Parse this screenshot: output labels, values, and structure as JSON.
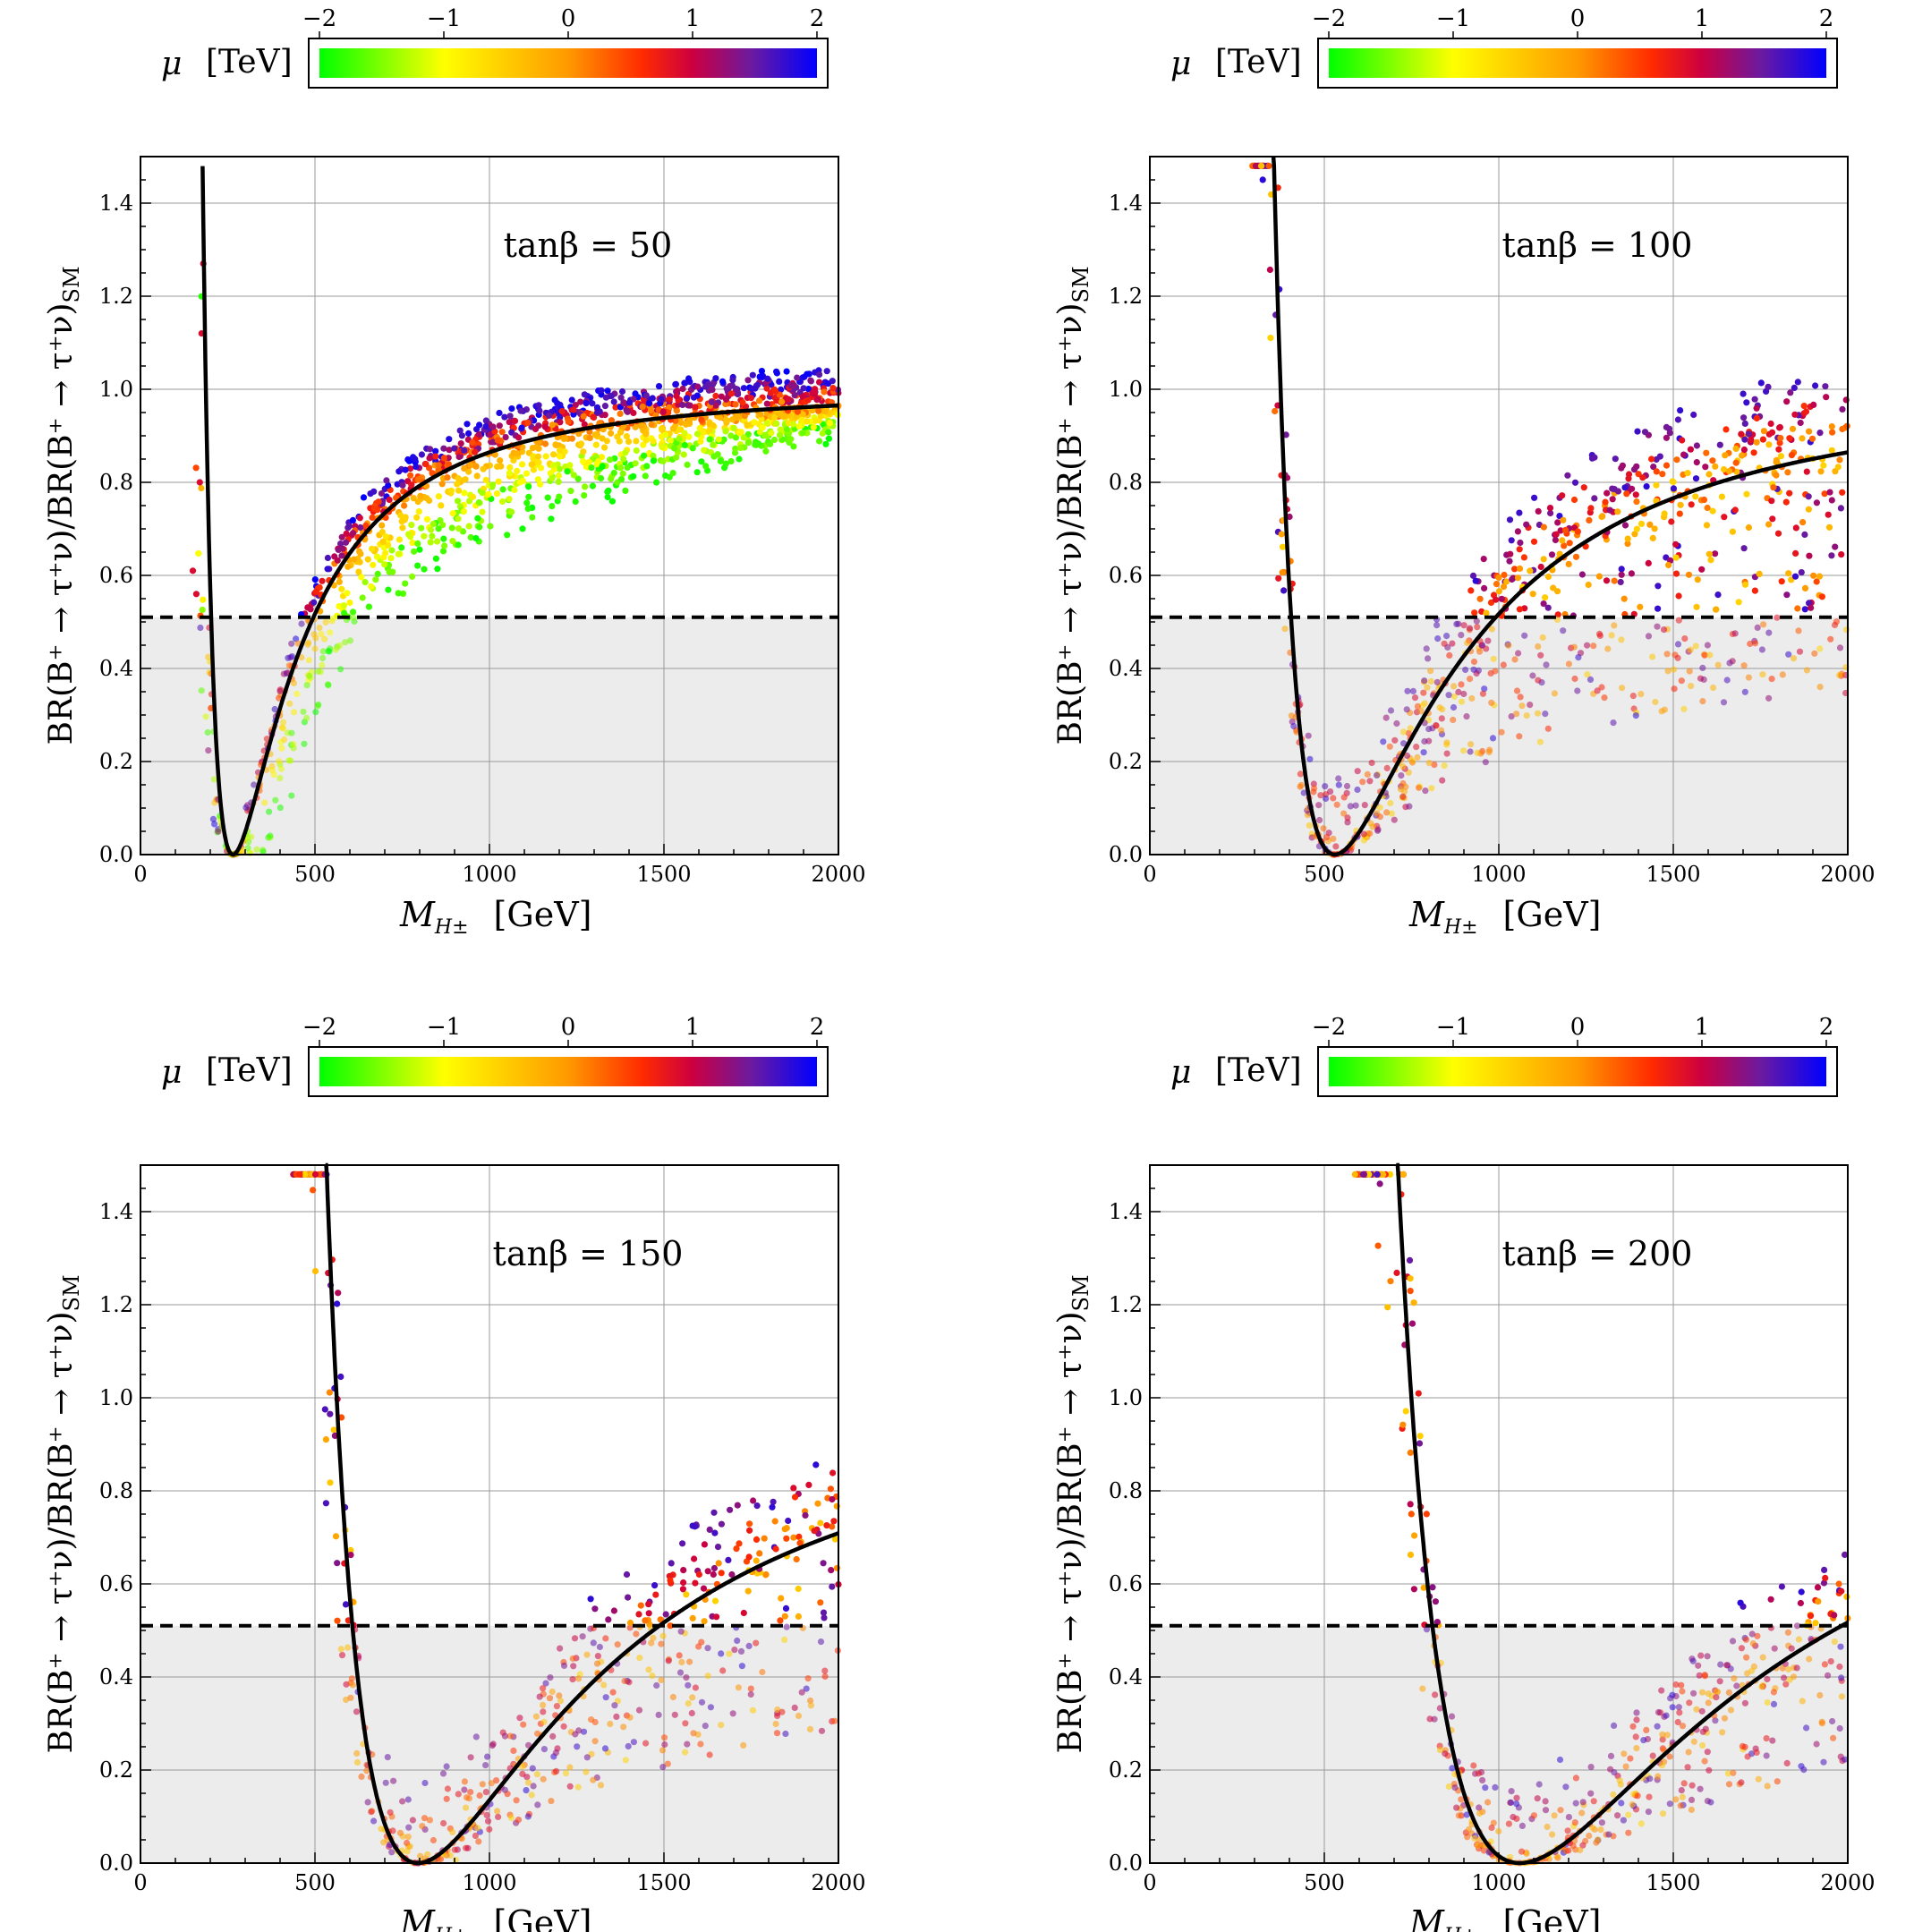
{
  "chart_data": [
    {
      "type": "scatter",
      "panel": "top-left",
      "annotation": "tanβ = 50",
      "colorbar": {
        "label_symbol": "μ",
        "label_unit": "[TeV]",
        "ticks": [
          "−2",
          "−1",
          "0",
          "1",
          "2"
        ],
        "range": [
          -2,
          2
        ]
      },
      "xlabel_symbol": "M",
      "xlabel_sub": "H±",
      "xlabel_unit": "[GeV]",
      "ylabel": "BR(B⁺ → τ⁺ν)/BR(B⁺ → τ⁺ν)",
      "ylabel_sub": "SM",
      "xlim": [
        0,
        2000
      ],
      "ylim": [
        0,
        1.5
      ],
      "xticks": [
        "0",
        "500",
        "1000",
        "1500",
        "2000"
      ],
      "yticks": [
        "0.0",
        "0.2",
        "0.4",
        "0.6",
        "0.8",
        "1.0",
        "1.2",
        "1.4"
      ],
      "exclusion_line": 0.51,
      "grid": true,
      "scatter_pattern": {
        "upper_branch_points": [
          [
            180,
            1.27
          ],
          [
            175,
            1.12
          ],
          [
            170,
            0.8
          ],
          [
            150,
            0.61
          ],
          [
            160,
            0.56
          ]
        ],
        "notes": "dense band below and around curve, blue-purple above, yellow/green below"
      },
      "theory_curve": "BR/BR_SM = (1 - (m_B^2/M_H^2) tan^2 beta)^2 type curve",
      "theory_curve_params": {
        "tanb": 50,
        "zero_at": 265,
        "asymptote": 1.0
      }
    },
    {
      "type": "scatter",
      "panel": "top-right",
      "annotation": "tanβ = 100",
      "colorbar": {
        "label_symbol": "μ",
        "label_unit": "[TeV]",
        "ticks": [
          "−2",
          "−1",
          "0",
          "1",
          "2"
        ],
        "range": [
          -2,
          2
        ]
      },
      "xlabel_symbol": "M",
      "xlabel_sub": "H±",
      "xlabel_unit": "[GeV]",
      "ylabel": "BR(B⁺ → τ⁺ν)/BR(B⁺ → τ⁺ν)",
      "ylabel_sub": "SM",
      "xlim": [
        0,
        2000
      ],
      "ylim": [
        0,
        1.5
      ],
      "xticks": [
        "0",
        "500",
        "1000",
        "1500",
        "2000"
      ],
      "yticks": [
        "0.0",
        "0.2",
        "0.4",
        "0.6",
        "0.8",
        "1.0",
        "1.2",
        "1.4"
      ],
      "exclusion_line": 0.51,
      "grid": true,
      "theory_curve_params": {
        "tanb": 100,
        "zero_at": 530,
        "asymptote": 1.0
      }
    },
    {
      "type": "scatter",
      "panel": "bottom-left",
      "annotation": "tanβ = 150",
      "colorbar": {
        "label_symbol": "μ",
        "label_unit": "[TeV]",
        "ticks": [
          "−2",
          "−1",
          "0",
          "1",
          "2"
        ],
        "range": [
          -2,
          2
        ]
      },
      "xlabel_symbol": "M",
      "xlabel_sub": "H±",
      "xlabel_unit": "[GeV]",
      "ylabel": "BR(B⁺ → τ⁺ν)/BR(B⁺ → τ⁺ν)",
      "ylabel_sub": "SM",
      "xlim": [
        0,
        2000
      ],
      "ylim": [
        0,
        1.5
      ],
      "xticks": [
        "0",
        "500",
        "1000",
        "1500",
        "2000"
      ],
      "yticks": [
        "0.0",
        "0.2",
        "0.4",
        "0.6",
        "0.8",
        "1.0",
        "1.2",
        "1.4"
      ],
      "exclusion_line": 0.51,
      "grid": true,
      "theory_curve_params": {
        "tanb": 150,
        "zero_at": 795,
        "asymptote": 1.0
      }
    },
    {
      "type": "scatter",
      "panel": "bottom-right",
      "annotation": "tanβ = 200",
      "colorbar": {
        "label_symbol": "μ",
        "label_unit": "[TeV]",
        "ticks": [
          "−2",
          "−1",
          "0",
          "1",
          "2"
        ],
        "range": [
          -2,
          2
        ]
      },
      "xlabel_symbol": "M",
      "xlabel_sub": "H±",
      "xlabel_unit": "[GeV]",
      "ylabel": "BR(B⁺ → τ⁺ν)/BR(B⁺ → τ⁺ν)",
      "ylabel_sub": "SM",
      "xlim": [
        0,
        2000
      ],
      "ylim": [
        0,
        1.5
      ],
      "xticks": [
        "0",
        "500",
        "1000",
        "1500",
        "2000"
      ],
      "yticks": [
        "0.0",
        "0.2",
        "0.4",
        "0.6",
        "0.8",
        "1.0",
        "1.2",
        "1.4"
      ],
      "exclusion_line": 0.51,
      "grid": true,
      "theory_curve_params": {
        "tanb": 200,
        "zero_at": 1060,
        "asymptote": 1.0
      }
    }
  ]
}
